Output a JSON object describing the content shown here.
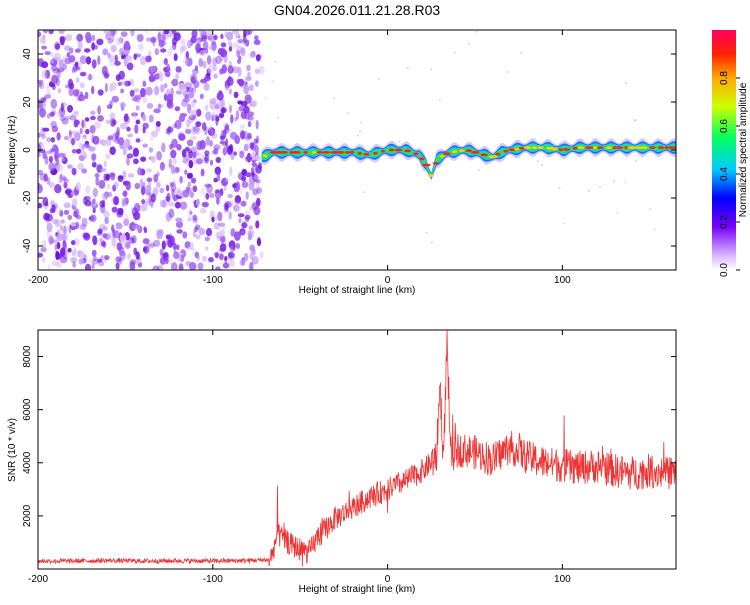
{
  "title": "GN04.2026.011.21.28.R03",
  "colors": {
    "spectrum_dots": "#8a2be2",
    "snr_line": "#ee3333",
    "ridge_core": "#ff2020",
    "ridge_mid": "#33dd55",
    "ridge_outer": "#1e6bff"
  },
  "chart_data": [
    {
      "type": "heatmap",
      "name": "spectrogram",
      "xlabel": "Height of straight line (km)",
      "ylabel": "Frequency (Hz)",
      "xlim": [
        -200,
        165
      ],
      "ylim": [
        -50,
        50
      ],
      "x_ticks": [
        -200,
        -100,
        0,
        100
      ],
      "x_tick_labels": [
        "-200",
        "-100",
        "0",
        "100"
      ],
      "y_ticks": [
        -40,
        -20,
        0,
        20,
        40
      ],
      "y_tick_labels": [
        "-40",
        "-20",
        "0",
        "20",
        "40"
      ],
      "noise_region_x": [
        -200,
        -72
      ],
      "ridge": {
        "x": [
          -72,
          -65,
          -50,
          -35,
          -20,
          -10,
          0,
          10,
          18,
          22,
          25,
          28,
          35,
          45,
          55,
          60,
          65,
          70,
          80,
          90,
          100,
          110,
          120,
          130,
          140,
          150,
          165
        ],
        "y": [
          -3,
          -1,
          -1,
          -1,
          -1,
          -2,
          0,
          0,
          -2,
          -6,
          -11,
          -4,
          -1,
          0,
          -2,
          -3,
          -1,
          0,
          1,
          1,
          0,
          1,
          1,
          1,
          1,
          1,
          1
        ]
      },
      "colorbar": {
        "label": "Normalized spectral amplitude",
        "range": [
          0,
          1
        ],
        "ticks": [
          0.0,
          0.2,
          0.4,
          0.6,
          0.8
        ],
        "tick_labels": [
          "0.0",
          "0.2",
          "0.4",
          "0.6",
          "0.8"
        ]
      }
    },
    {
      "type": "line",
      "name": "snr",
      "xlabel": "Height of straight line (km)",
      "ylabel": "SNR (10 * v/v)",
      "xlim": [
        -200,
        165
      ],
      "ylim": [
        0,
        9000
      ],
      "x_ticks": [
        -200,
        -100,
        0,
        100
      ],
      "x_tick_labels": [
        "-200",
        "-100",
        "0",
        "100"
      ],
      "y_ticks": [
        2000,
        4000,
        6000,
        8000
      ],
      "y_tick_labels": [
        "2000",
        "4000",
        "6000",
        "8000"
      ],
      "series": [
        {
          "name": "SNR",
          "x": [
            -200,
            -180,
            -160,
            -140,
            -120,
            -100,
            -80,
            -67,
            -63,
            -55,
            -45,
            -40,
            -30,
            -20,
            -10,
            0,
            10,
            20,
            25,
            28,
            30,
            32,
            34,
            36,
            40,
            50,
            60,
            70,
            80,
            90,
            100,
            110,
            120,
            130,
            140,
            150,
            160,
            165
          ],
          "y": [
            300,
            300,
            320,
            300,
            310,
            300,
            320,
            350,
            1300,
            900,
            600,
            1200,
            1900,
            2300,
            2700,
            3000,
            3300,
            3700,
            4000,
            4300,
            7000,
            4100,
            8600,
            4300,
            4500,
            4400,
            4100,
            4600,
            4200,
            4000,
            3900,
            3800,
            3900,
            3700,
            3600,
            3700,
            3600,
            3700
          ]
        }
      ]
    }
  ]
}
